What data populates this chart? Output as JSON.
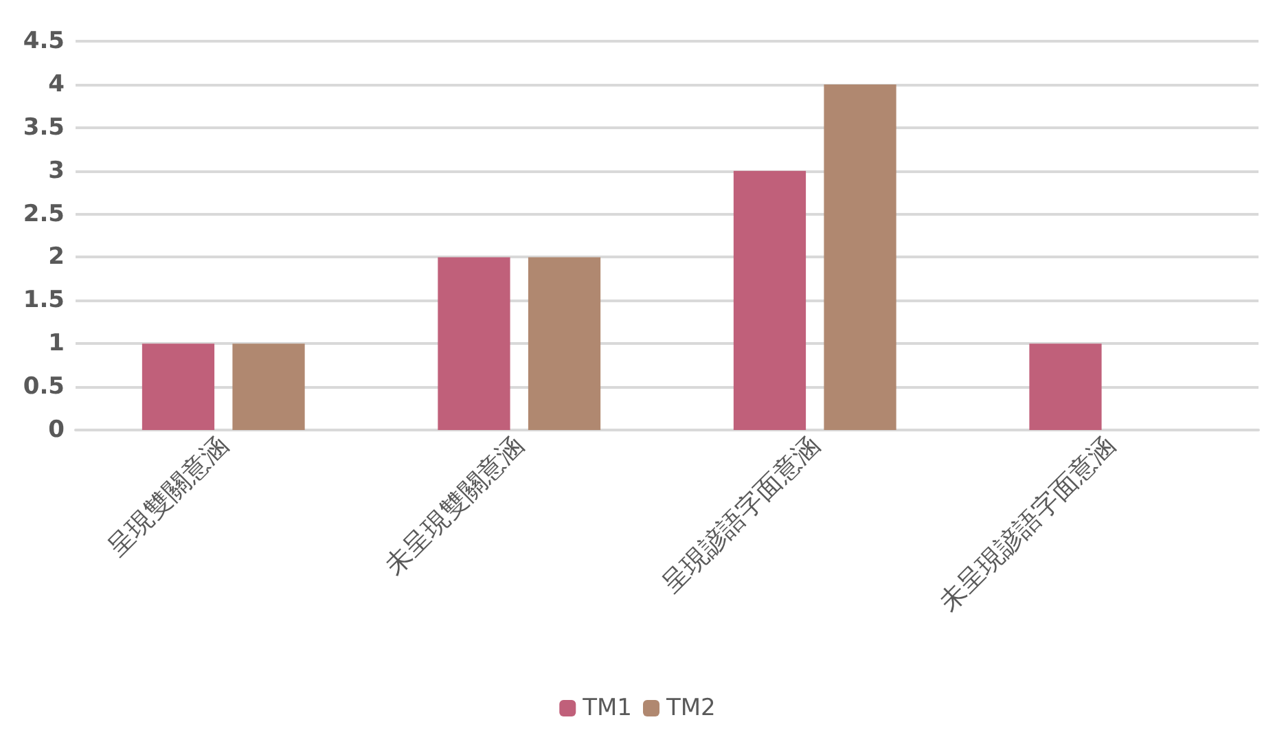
{
  "chart_data": {
    "type": "bar",
    "categories": [
      "呈現雙關意涵",
      "未呈現雙關意涵",
      "呈現諺語字面意涵",
      "未呈現諺語字面意涵"
    ],
    "series": [
      {
        "name": "TM1",
        "color": "#c0607a",
        "values": [
          1,
          2,
          3,
          1
        ]
      },
      {
        "name": "TM2",
        "color": "#b08870",
        "values": [
          1,
          2,
          4,
          0
        ]
      }
    ],
    "ylim": [
      0,
      4.5
    ],
    "yticks": [
      0,
      0.5,
      1,
      1.5,
      2,
      2.5,
      3,
      3.5,
      4,
      4.5
    ],
    "grid": "y",
    "legend": "bottom"
  }
}
